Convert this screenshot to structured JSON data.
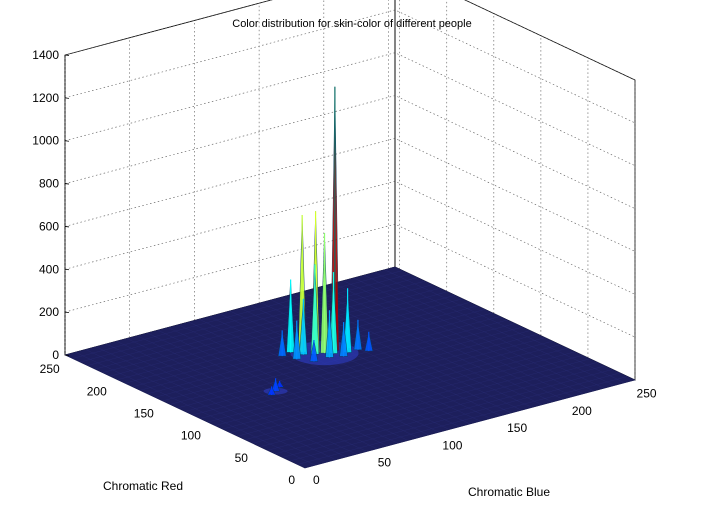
{
  "chart_data": {
    "type": "surface",
    "title": "Color distribution for skin-color of different people",
    "xlabel": "Chromatic Blue",
    "ylabel": "Chromatic Red",
    "zlabel": "",
    "xlim": [
      0,
      255
    ],
    "ylim": [
      0,
      255
    ],
    "zlim": [
      0,
      1400
    ],
    "x_ticks": [
      "0",
      "50",
      "100",
      "150",
      "200",
      "250"
    ],
    "y_ticks": [
      "0",
      "50",
      "100",
      "150",
      "200",
      "250"
    ],
    "z_ticks": [
      "0",
      "200",
      "400",
      "600",
      "800",
      "1000",
      "1200",
      "1400"
    ],
    "grid": true,
    "colormap": "jet",
    "floor_color": "#1d1f5c",
    "peaks": [
      {
        "x": 138,
        "y": 158,
        "z": 1230
      },
      {
        "x": 126,
        "y": 162,
        "z": 660
      },
      {
        "x": 130,
        "y": 158,
        "z": 560
      },
      {
        "x": 120,
        "y": 168,
        "z": 640
      },
      {
        "x": 124,
        "y": 160,
        "z": 420
      },
      {
        "x": 134,
        "y": 154,
        "z": 380
      },
      {
        "x": 114,
        "y": 172,
        "z": 340
      },
      {
        "x": 142,
        "y": 150,
        "z": 300
      },
      {
        "x": 118,
        "y": 164,
        "z": 260
      },
      {
        "x": 128,
        "y": 150,
        "z": 220
      },
      {
        "x": 146,
        "y": 156,
        "z": 200
      },
      {
        "x": 110,
        "y": 160,
        "z": 180
      },
      {
        "x": 136,
        "y": 146,
        "z": 160
      },
      {
        "x": 150,
        "y": 150,
        "z": 140
      },
      {
        "x": 106,
        "y": 170,
        "z": 120
      },
      {
        "x": 140,
        "y": 162,
        "z": 110
      },
      {
        "x": 116,
        "y": 150,
        "z": 100
      },
      {
        "x": 154,
        "y": 144,
        "z": 90
      },
      {
        "x": 66,
        "y": 122,
        "z": 60
      },
      {
        "x": 60,
        "y": 118,
        "z": 40
      },
      {
        "x": 72,
        "y": 126,
        "z": 30
      }
    ]
  }
}
